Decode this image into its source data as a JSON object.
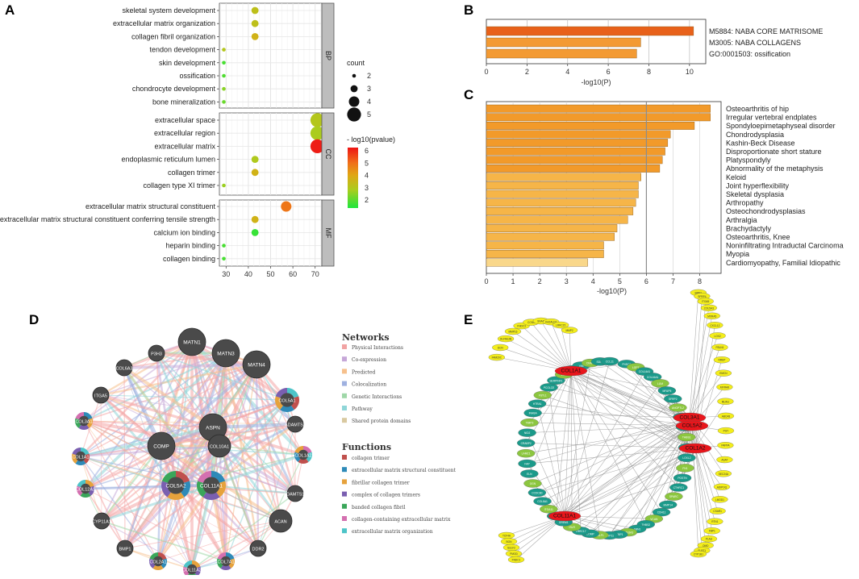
{
  "panels": {
    "A": "A",
    "B": "B",
    "C": "C",
    "D": "D",
    "E": "E"
  },
  "chart_data": [
    {
      "id": "A",
      "type": "scatter",
      "xlim": [
        27,
        73
      ],
      "xticks": [
        30,
        40,
        50,
        60,
        70
      ],
      "facets": [
        {
          "name": "BP",
          "terms": [
            {
              "label": "skeletal system development",
              "x": 43,
              "count": 3,
              "p": 3.6
            },
            {
              "label": "extracellular matrix organization",
              "x": 43,
              "count": 3,
              "p": 3.6
            },
            {
              "label": "collagen fibril organization",
              "x": 43,
              "count": 3,
              "p": 4.0
            },
            {
              "label": "tendon development",
              "x": 29,
              "count": 2,
              "p": 3.4
            },
            {
              "label": "skin development",
              "x": 29,
              "count": 2,
              "p": 2.0
            },
            {
              "label": "ossification",
              "x": 29,
              "count": 2,
              "p": 2.1
            },
            {
              "label": "chondrocyte development",
              "x": 29,
              "count": 2,
              "p": 2.8
            },
            {
              "label": "bone mineralization",
              "x": 29,
              "count": 2,
              "p": 2.4
            }
          ]
        },
        {
          "name": "CC",
          "terms": [
            {
              "label": "extracellular space",
              "x": 71,
              "count": 5,
              "p": 3.4
            },
            {
              "label": "extracellular region",
              "x": 71,
              "count": 5,
              "p": 3.2
            },
            {
              "label": "extracellular matrix",
              "x": 71,
              "count": 5,
              "p": 6.2
            },
            {
              "label": "endoplasmic reticulum lumen",
              "x": 43,
              "count": 3,
              "p": 3.3
            },
            {
              "label": "collagen trimer",
              "x": 43,
              "count": 3,
              "p": 4.0
            },
            {
              "label": "collagen type XI trimer",
              "x": 29,
              "count": 2,
              "p": 3.0
            }
          ]
        },
        {
          "name": "MF",
          "terms": [
            {
              "label": "extracellular matrix structural constituent",
              "x": 57,
              "count": 4,
              "p": 5.2
            },
            {
              "label": "extracellular matrix structural constituent conferring tensile strength",
              "x": 43,
              "count": 3,
              "p": 4.0
            },
            {
              "label": "calcium ion binding",
              "x": 43,
              "count": 3,
              "p": 1.8
            },
            {
              "label": "heparin binding",
              "x": 29,
              "count": 2,
              "p": 2.0
            },
            {
              "label": "collagen binding",
              "x": 29,
              "count": 2,
              "p": 2.0
            }
          ]
        }
      ],
      "legend_count": {
        "title": "count",
        "values": [
          2,
          3,
          4,
          5
        ]
      },
      "legend_color": {
        "title": "- log10(pvalue)",
        "values": [
          6,
          5,
          4,
          3,
          2
        ]
      }
    },
    {
      "id": "B",
      "type": "bar",
      "orientation": "horizontal",
      "categories": [
        "M5884: NABA CORE MATRISOME",
        "M3005: NABA COLLAGENS",
        "GO:0001503: ossification"
      ],
      "values": [
        10.2,
        7.6,
        7.4
      ],
      "colors": [
        "#e8611a",
        "#f39a33",
        "#f39a33"
      ],
      "xlim": [
        0,
        10.8
      ],
      "xticks": [
        0,
        2,
        4,
        6,
        8,
        10
      ],
      "xlabel": "-log10(P)"
    },
    {
      "id": "C",
      "type": "bar",
      "orientation": "horizontal",
      "categories": [
        "Osteoarthritis of hip",
        "Irregular vertebral endplates",
        "Spondyloepimetaphyseal disorder",
        "Chondrodysplasia",
        "Kashin-Beck Disease",
        "Disproportionate short stature",
        "Platyspondyly",
        "Abnormality of the metaphysis",
        "Keloid",
        "Joint hyperflexibility",
        "Skeletal dysplasia",
        "Arthropathy",
        "Osteochondrodysplasias",
        "Arthralgia",
        "Brachydactyly",
        "Osteoarthritis, Knee",
        "Noninfiltrating Intraductal Carcinoma",
        "Myopia",
        "Cardiomyopathy, Familial Idiopathic"
      ],
      "values": [
        8.4,
        8.4,
        7.8,
        6.9,
        6.8,
        6.7,
        6.6,
        6.5,
        5.8,
        5.7,
        5.7,
        5.6,
        5.5,
        5.3,
        4.9,
        4.8,
        4.4,
        4.4,
        3.8
      ],
      "colors": [
        "#f29a2a",
        "#f29a2a",
        "#f29a2a",
        "#f29a2a",
        "#f29a2a",
        "#f29a2a",
        "#f29a2a",
        "#f29a2a",
        "#f6b548",
        "#f6b548",
        "#f6b548",
        "#f6b548",
        "#f6b548",
        "#f6b548",
        "#f6b548",
        "#f6b548",
        "#f6b548",
        "#f6b548",
        "#f9d78a"
      ],
      "xlim": [
        0,
        8.8
      ],
      "xticks": [
        0,
        1,
        2,
        3,
        4,
        5,
        6,
        7,
        8
      ],
      "threshold": 6,
      "xlabel": "-log10(P)"
    }
  ],
  "network_d": {
    "nodes": [
      {
        "label": "MATN1",
        "size": "large",
        "ring": false
      },
      {
        "label": "MATN3",
        "size": "large",
        "ring": false
      },
      {
        "label": "MATN4",
        "size": "large",
        "ring": false
      },
      {
        "label": "P3H3",
        "size": "small",
        "ring": false
      },
      {
        "label": "COL6A3",
        "size": "small",
        "ring": false
      },
      {
        "label": "ITGA5",
        "size": "small",
        "ring": false
      },
      {
        "label": "COL5A1",
        "size": "medium",
        "ring": true
      },
      {
        "label": "ADAMTS7",
        "size": "small",
        "ring": false
      },
      {
        "label": "COL3A1",
        "size": "small",
        "ring": true
      },
      {
        "label": "ASPN",
        "size": "large",
        "ring": false
      },
      {
        "label": "COMP",
        "size": "large",
        "ring": false
      },
      {
        "label": "COL10A1",
        "size": "medium",
        "ring": false
      },
      {
        "label": "COL1A2",
        "size": "small",
        "ring": true
      },
      {
        "label": "COL1A1",
        "size": "small",
        "ring": true
      },
      {
        "label": "COL5A2",
        "size": "large",
        "ring": true
      },
      {
        "label": "COL11A1",
        "size": "large",
        "ring": true
      },
      {
        "label": "COL12A1",
        "size": "small",
        "ring": true
      },
      {
        "label": "ADAMTS12",
        "size": "small",
        "ring": false
      },
      {
        "label": "CYP11A1",
        "size": "small",
        "ring": false
      },
      {
        "label": "ACAN",
        "size": "medium",
        "ring": false
      },
      {
        "label": "BMP1",
        "size": "small",
        "ring": false
      },
      {
        "label": "COL2A1",
        "size": "small",
        "ring": true
      },
      {
        "label": "COL7A1",
        "size": "small",
        "ring": true
      },
      {
        "label": "COL11A2",
        "size": "small",
        "ring": true
      },
      {
        "label": "DDR2",
        "size": "small",
        "ring": false
      }
    ],
    "networks_title": "Networks",
    "networks": [
      {
        "label": "Physical Interactions",
        "color": "#f1a3a3"
      },
      {
        "label": "Co-expression",
        "color": "#c6a7d8"
      },
      {
        "label": "Predicted",
        "color": "#f6c08c"
      },
      {
        "label": "Colocalization",
        "color": "#9fb1e0"
      },
      {
        "label": "Genetic Interactions",
        "color": "#9fd7a8"
      },
      {
        "label": "Pathway",
        "color": "#8fd6d8"
      },
      {
        "label": "Shared protein domains",
        "color": "#d9c9a0"
      }
    ],
    "functions_title": "Functions",
    "functions": [
      {
        "label": "collagen trimer",
        "color": "#c0504d"
      },
      {
        "label": "extracellular matrix structural constituent",
        "color": "#2e8ab8"
      },
      {
        "label": "fibrillar collagen trimer",
        "color": "#e6a23c"
      },
      {
        "label": "complex of collagen trimers",
        "color": "#7a5fb0"
      },
      {
        "label": "banded collagen fibril",
        "color": "#3aa65a"
      },
      {
        "label": "collagen-containing extracellular matrix",
        "color": "#d470b0"
      },
      {
        "label": "extracellular matrix organization",
        "color": "#4dc4c8"
      }
    ]
  },
  "network_e": {
    "hubs": [
      "COL1A1",
      "COL3A1",
      "COL5A2",
      "COL1A2",
      "COL11A1"
    ],
    "yellow_top": [
      "FAM20C",
      "DCN",
      "OLFML2B",
      "MMP16",
      "FNDC3",
      "CCN4",
      "SNAI2",
      "KAZALD1",
      "LRRC15",
      "MMP2"
    ],
    "yellow_right": [
      "BMP1",
      "SFRP4",
      "ITGA5",
      "COL5A3",
      "MXRA5",
      "CXCL12",
      "LOX2",
      "FBLN1",
      "NREP",
      "EMCN",
      "MXRA8",
      "MLIN1",
      "ABCA8",
      "PGY",
      "PAPPA",
      "ASAT",
      "SEC24A",
      "ADIPOQ",
      "LMOD1",
      "CSAR1",
      "RTN1",
      "FBP1",
      "PLAU",
      "OMD",
      "FLRT1",
      "CYP1B1"
    ],
    "yellow_bottom": [
      "TCF4A",
      "BGN",
      "SULF2",
      "PMOD",
      "FNDC1"
    ],
    "green_nodes": [
      "FNDC1",
      "LGP7",
      "COL14A1",
      "COL16A1",
      "LUM",
      "MFAP5",
      "SFRP2",
      "ANGPTL2",
      "TNC",
      "LAMA2",
      "THBS1",
      "PDGFRB",
      "LOXL2",
      "FN1",
      "POSTN",
      "CTHRC1",
      "SPARC",
      "MMP14",
      "CDH11",
      "VCAN",
      "THBS2",
      "FBN1",
      "COL6A3",
      "AEBP1",
      "MMP11",
      "SULF1",
      "COMP",
      "LRRC17",
      "ISLR",
      "GREM1",
      "SPON2",
      "ITGA11",
      "COL8A1",
      "CCDC80",
      "OGN",
      "ELN",
      "FAP",
      "LAMC1",
      "CRABP2",
      "NID2",
      "TIMP3",
      "INHBA",
      "HTRA1",
      "FSTL1",
      "PCOLCE",
      "SERPINF1",
      "LOX",
      "SPP1",
      "VIM",
      "CKAP4",
      "SDC1",
      "CCL11"
    ]
  }
}
